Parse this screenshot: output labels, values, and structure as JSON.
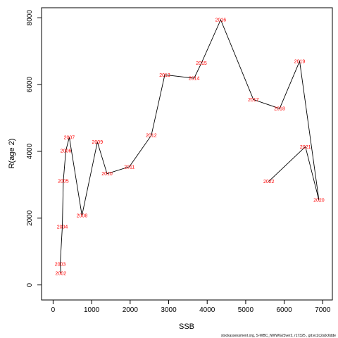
{
  "chart_data": {
    "type": "line",
    "xlabel": "SSB",
    "ylabel": "R(age 2)",
    "xlim": [
      -300,
      7250
    ],
    "ylim": [
      -450,
      8300
    ],
    "xticks": [
      0,
      1000,
      2000,
      3000,
      4000,
      5000,
      6000,
      7000
    ],
    "yticks": [
      0,
      2000,
      4000,
      6000,
      8000
    ],
    "grid": false,
    "line_color": "#000000",
    "label_color": "#ff0000",
    "points": [
      {
        "label": "2002",
        "x": 200,
        "y": 350
      },
      {
        "label": "2003",
        "x": 185,
        "y": 630
      },
      {
        "label": "2004",
        "x": 240,
        "y": 1740
      },
      {
        "label": "2005",
        "x": 265,
        "y": 3110
      },
      {
        "label": "2006",
        "x": 330,
        "y": 4020
      },
      {
        "label": "2007",
        "x": 420,
        "y": 4420
      },
      {
        "label": "2008",
        "x": 750,
        "y": 2080
      },
      {
        "label": "2009",
        "x": 1150,
        "y": 4280
      },
      {
        "label": "2010",
        "x": 1400,
        "y": 3330
      },
      {
        "label": "2011",
        "x": 1980,
        "y": 3540
      },
      {
        "label": "2012",
        "x": 2550,
        "y": 4480
      },
      {
        "label": "2013",
        "x": 2900,
        "y": 6290
      },
      {
        "label": "2014",
        "x": 3660,
        "y": 6190
      },
      {
        "label": "2015",
        "x": 3850,
        "y": 6640
      },
      {
        "label": "2016",
        "x": 4350,
        "y": 7940
      },
      {
        "label": "2017",
        "x": 5200,
        "y": 5550
      },
      {
        "label": "2018",
        "x": 5880,
        "y": 5280
      },
      {
        "label": "2019",
        "x": 6400,
        "y": 6700
      },
      {
        "label": "2020",
        "x": 6900,
        "y": 2540
      },
      {
        "label": "2021",
        "x": 6550,
        "y": 4140
      },
      {
        "label": "2022",
        "x": 5600,
        "y": 3100
      }
    ]
  },
  "footer": {
    "credit": "stockassessment.org, S-WBC_NWWG23ver2, r17325 , git:ec2c2a0c6dde"
  }
}
